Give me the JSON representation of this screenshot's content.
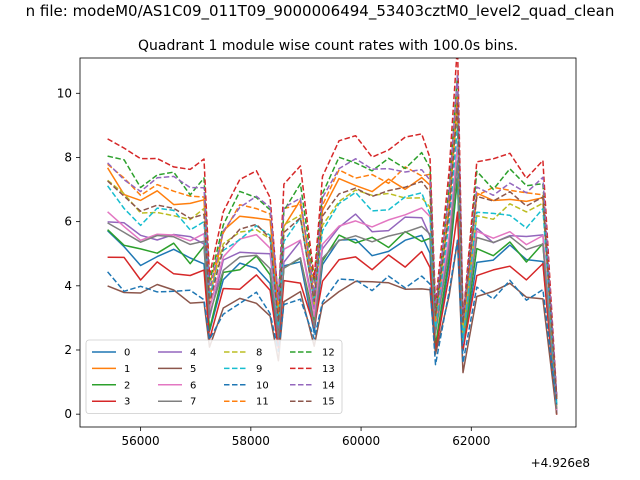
{
  "suptitle": "n file: modeM0/AS1C09_011T09_9000006494_53403cztM0_level2_quad_clean",
  "chart_data": {
    "type": "line",
    "title": "Quadrant 1 module wise count rates with 100.0s bins.",
    "xlabel": "",
    "ylabel": "",
    "x_offset_label": "+4.926e8",
    "xlim": [
      54900,
      63900
    ],
    "ylim": [
      -0.4,
      11.1
    ],
    "xticks": [
      56000,
      58000,
      60000,
      62000
    ],
    "xtick_labels": [
      "56000",
      "58000",
      "60000",
      "62000"
    ],
    "yticks": [
      0,
      2,
      4,
      6,
      8,
      10
    ],
    "ytick_labels": [
      "0",
      "2",
      "4",
      "6",
      "8",
      "10"
    ],
    "grid": false,
    "legend_position": "lower-left",
    "legend_columns": 4,
    "shape_x": [
      55400,
      55700,
      56000,
      56300,
      56600,
      56900,
      57150,
      57250,
      57500,
      57800,
      58100,
      58350,
      58500,
      58600,
      58900,
      59150,
      59300,
      59600,
      59900,
      60200,
      60500,
      60800,
      61100,
      61250,
      61350,
      61600,
      61750,
      61850,
      62100,
      62400,
      62700,
      63000,
      63300,
      63550
    ],
    "shape_profile": [
      1.0,
      0.94,
      0.88,
      0.91,
      0.9,
      0.86,
      0.88,
      0.5,
      0.74,
      0.82,
      0.84,
      0.78,
      0.42,
      0.8,
      0.86,
      0.5,
      0.86,
      0.95,
      0.97,
      0.93,
      0.95,
      0.96,
      0.98,
      0.93,
      0.4,
      0.84,
      1.3,
      0.36,
      0.9,
      0.88,
      0.92,
      0.86,
      0.9,
      0.04
    ],
    "series": [
      {
        "name": "0",
        "color": "#1f77b4",
        "dash": "solid",
        "level": 5.5
      },
      {
        "name": "1",
        "color": "#ff7f0e",
        "dash": "solid",
        "level": 7.5
      },
      {
        "name": "2",
        "color": "#2ca02c",
        "dash": "solid",
        "level": 5.7
      },
      {
        "name": "3",
        "color": "#d62728",
        "dash": "solid",
        "level": 5.0
      },
      {
        "name": "4",
        "color": "#9467bd",
        "dash": "solid",
        "level": 6.2
      },
      {
        "name": "5",
        "color": "#8c564b",
        "dash": "solid",
        "level": 4.2
      },
      {
        "name": "6",
        "color": "#e377c2",
        "dash": "solid",
        "level": 6.4
      },
      {
        "name": "7",
        "color": "#7f7f7f",
        "dash": "solid",
        "level": 5.9
      },
      {
        "name": "8",
        "color": "#bcbd22",
        "dash": "dashed",
        "level": 7.1
      },
      {
        "name": "9",
        "color": "#17becf",
        "dash": "dashed",
        "level": 6.9
      },
      {
        "name": "10",
        "color": "#1f77b4",
        "dash": "dashed",
        "level": 4.3
      },
      {
        "name": "11",
        "color": "#ff7f0e",
        "dash": "dashed",
        "level": 7.8
      },
      {
        "name": "12",
        "color": "#2ca02c",
        "dash": "dashed",
        "level": 8.2
      },
      {
        "name": "13",
        "color": "#d62728",
        "dash": "dashed",
        "level": 8.8
      },
      {
        "name": "14",
        "color": "#9467bd",
        "dash": "dashed",
        "level": 8.0
      },
      {
        "name": "15",
        "color": "#8c564b",
        "dash": "dashed",
        "level": 7.3
      }
    ]
  }
}
